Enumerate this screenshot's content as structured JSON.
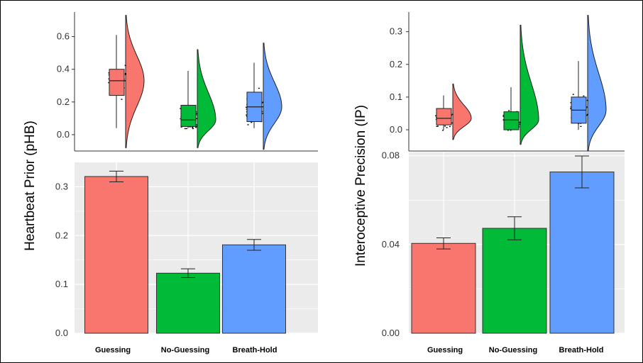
{
  "colors": {
    "Guessing": "#f8766d",
    "No-Guessing": "#00ba38",
    "Breath-Hold": "#619cff",
    "panel_bg": "#ebebeb",
    "grid": "#ffffff",
    "edge": "#333333"
  },
  "chart_data": [
    {
      "panel": "left-top",
      "type": "raincloud",
      "categories": [
        "Guessing",
        "No-Guessing",
        "Breath-Hold"
      ],
      "ylim": [
        -0.1,
        0.75
      ],
      "yticks": [
        "0.0",
        "0.2",
        "0.4",
        "0.6"
      ],
      "boxes": [
        {
          "name": "Guessing",
          "min": 0.04,
          "q1": 0.24,
          "median": 0.33,
          "q3": 0.4,
          "max": 0.61,
          "density_range": [
            -0.08,
            0.73
          ]
        },
        {
          "name": "No-Guessing",
          "min": 0.04,
          "q1": 0.05,
          "median": 0.09,
          "q3": 0.18,
          "max": 0.39,
          "density_range": [
            -0.08,
            0.52
          ]
        },
        {
          "name": "Breath-Hold",
          "min": 0.04,
          "q1": 0.08,
          "median": 0.17,
          "q3": 0.26,
          "max": 0.44,
          "density_range": [
            -0.09,
            0.56
          ]
        }
      ]
    },
    {
      "panel": "left-bottom",
      "type": "bar",
      "categories": [
        "Guessing",
        "No-Guessing",
        "Breath-Hold"
      ],
      "values": [
        0.321,
        0.123,
        0.181
      ],
      "errors": [
        0.011,
        0.009,
        0.011
      ],
      "ylim": [
        0,
        0.35
      ],
      "yticks": [
        "0.0",
        "0.1",
        "0.2",
        "0.3"
      ]
    },
    {
      "panel": "right-top",
      "type": "raincloud",
      "categories": [
        "Guessing",
        "No-Guessing",
        "Breath-Hold"
      ],
      "ylim": [
        -0.065,
        0.36
      ],
      "yticks": [
        "0.0",
        "0.1",
        "0.2",
        "0.3"
      ],
      "boxes": [
        {
          "name": "Guessing",
          "min": 0.0,
          "q1": 0.015,
          "median": 0.035,
          "q3": 0.065,
          "max": 0.105,
          "density_range": [
            -0.03,
            0.14
          ]
        },
        {
          "name": "No-Guessing",
          "min": 0.0,
          "q1": 0.0,
          "median": 0.03,
          "q3": 0.055,
          "max": 0.13,
          "density_range": [
            -0.045,
            0.32
          ]
        },
        {
          "name": "Breath-Hold",
          "min": 0.0,
          "q1": 0.02,
          "median": 0.06,
          "q3": 0.1,
          "max": 0.21,
          "density_range": [
            -0.065,
            0.35
          ]
        }
      ]
    },
    {
      "panel": "right-bottom",
      "type": "bar",
      "categories": [
        "Guessing",
        "No-Guessing",
        "Breath-Hold"
      ],
      "values": [
        0.0405,
        0.0473,
        0.0727
      ],
      "errors": [
        0.0025,
        0.0052,
        0.0072
      ],
      "ylim": [
        0,
        0.0815
      ],
      "yticks": [
        "0.00",
        "0.04",
        "0.08"
      ]
    }
  ],
  "left_ylabel": "Heartbeat Prior (pHB)",
  "right_ylabel": "Interoceptive Precision (IP)",
  "categories": [
    "Guessing",
    "No-Guessing",
    "Breath-Hold"
  ]
}
